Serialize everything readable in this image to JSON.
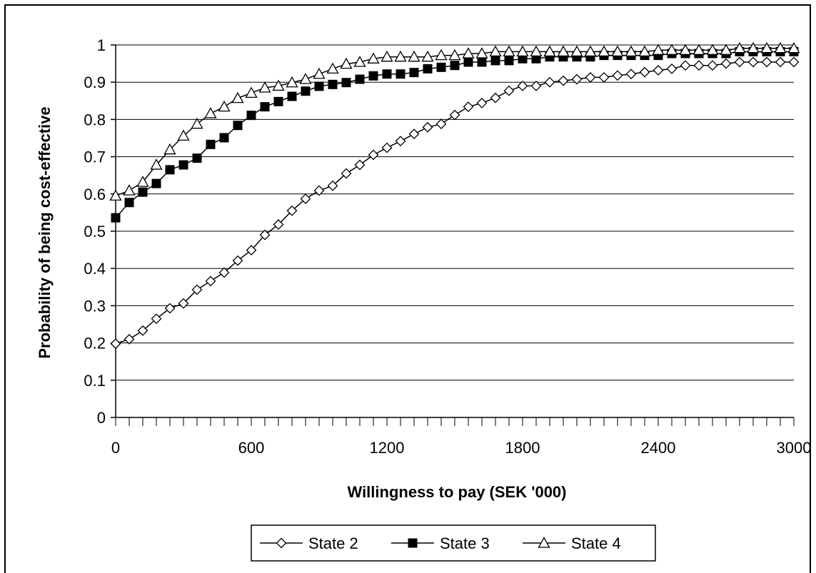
{
  "chart_data": {
    "type": "line",
    "title": "",
    "xlabel": "Willingness to pay (SEK '000)",
    "ylabel": "Probability of being cost-effective",
    "xlim": [
      0,
      3000
    ],
    "ylim": [
      0,
      1
    ],
    "x_ticks": [
      0,
      600,
      1200,
      1800,
      2400,
      3000
    ],
    "x_tick_labels": [
      "0",
      "600",
      "1200",
      "1800",
      "2400",
      "3000"
    ],
    "y_ticks": [
      0,
      0.1,
      0.2,
      0.3,
      0.4,
      0.5,
      0.6,
      0.7,
      0.8,
      0.9,
      1
    ],
    "y_tick_labels": [
      "0",
      "0.1",
      "0.2",
      "0.3",
      "0.4",
      "0.5",
      "0.6",
      "0.7",
      "0.8",
      "0.9",
      "1"
    ],
    "grid": "horizontal",
    "legend_position": "bottom",
    "x": [
      0,
      60,
      120,
      180,
      240,
      300,
      360,
      420,
      480,
      540,
      600,
      660,
      720,
      780,
      840,
      900,
      960,
      1020,
      1080,
      1140,
      1200,
      1260,
      1320,
      1380,
      1440,
      1500,
      1560,
      1620,
      1680,
      1740,
      1800,
      1860,
      1920,
      1980,
      2040,
      2100,
      2160,
      2220,
      2280,
      2340,
      2400,
      2460,
      2520,
      2580,
      2640,
      2700,
      2760,
      2820,
      2880,
      2940,
      3000
    ],
    "series": [
      {
        "name": "State 2",
        "marker": "diamond-open",
        "values": [
          0.198,
          0.21,
          0.233,
          0.265,
          0.293,
          0.306,
          0.343,
          0.366,
          0.389,
          0.421,
          0.449,
          0.49,
          0.518,
          0.555,
          0.587,
          0.609,
          0.622,
          0.655,
          0.678,
          0.705,
          0.724,
          0.742,
          0.761,
          0.779,
          0.788,
          0.812,
          0.834,
          0.844,
          0.858,
          0.877,
          0.89,
          0.89,
          0.9,
          0.904,
          0.908,
          0.913,
          0.913,
          0.918,
          0.922,
          0.927,
          0.932,
          0.936,
          0.945,
          0.945,
          0.945,
          0.95,
          0.954,
          0.954,
          0.954,
          0.954,
          0.954
        ]
      },
      {
        "name": "State 3",
        "marker": "square-filled",
        "values": [
          0.536,
          0.577,
          0.605,
          0.628,
          0.665,
          0.678,
          0.696,
          0.733,
          0.751,
          0.784,
          0.811,
          0.834,
          0.848,
          0.862,
          0.876,
          0.889,
          0.894,
          0.899,
          0.908,
          0.917,
          0.922,
          0.922,
          0.926,
          0.936,
          0.94,
          0.945,
          0.954,
          0.954,
          0.958,
          0.958,
          0.963,
          0.963,
          0.968,
          0.968,
          0.968,
          0.968,
          0.972,
          0.972,
          0.972,
          0.972,
          0.972,
          0.977,
          0.977,
          0.977,
          0.977,
          0.977,
          0.982,
          0.982,
          0.982,
          0.982,
          0.982
        ]
      },
      {
        "name": "State 4",
        "marker": "triangle-open",
        "values": [
          0.595,
          0.609,
          0.632,
          0.678,
          0.719,
          0.756,
          0.788,
          0.816,
          0.834,
          0.857,
          0.871,
          0.885,
          0.89,
          0.899,
          0.908,
          0.922,
          0.936,
          0.949,
          0.954,
          0.963,
          0.968,
          0.968,
          0.968,
          0.968,
          0.972,
          0.972,
          0.977,
          0.977,
          0.982,
          0.982,
          0.982,
          0.982,
          0.982,
          0.982,
          0.982,
          0.982,
          0.982,
          0.982,
          0.982,
          0.982,
          0.986,
          0.986,
          0.986,
          0.986,
          0.986,
          0.986,
          0.991,
          0.991,
          0.991,
          0.991,
          0.991
        ]
      }
    ]
  }
}
